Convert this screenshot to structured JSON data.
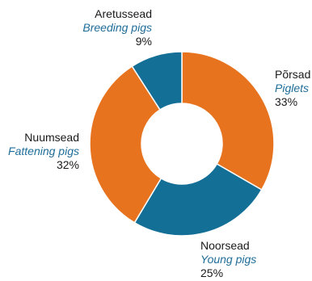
{
  "chart_data": {
    "type": "pie",
    "donut": true,
    "slices": [
      {
        "label_et": "Põrsad",
        "label_en": "Piglets",
        "value": 33,
        "display": "33%",
        "color": "#e8731f"
      },
      {
        "label_et": "Noorsead",
        "label_en": "Young pigs",
        "value": 25,
        "display": "25%",
        "color": "#146f97"
      },
      {
        "label_et": "Nuumsead",
        "label_en": "Fattening pigs",
        "value": 32,
        "display": "32%",
        "color": "#e8731f"
      },
      {
        "label_et": "Aretussead",
        "label_en": "Breeding pigs",
        "value": 9,
        "display": "9%",
        "color": "#146f97"
      }
    ]
  }
}
